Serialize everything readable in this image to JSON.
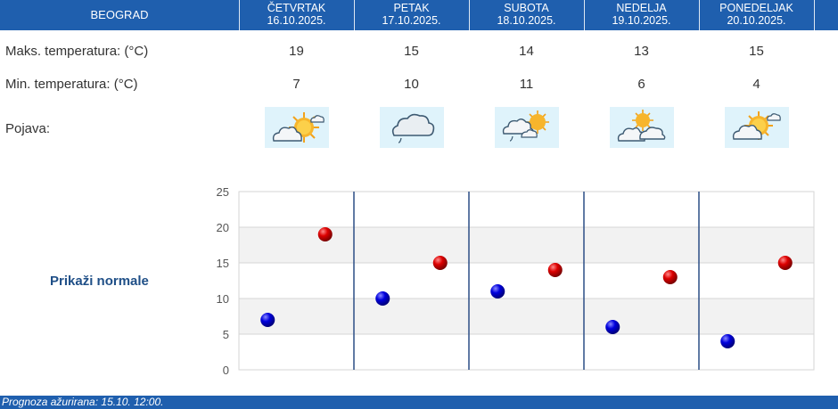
{
  "header": {
    "city": "BEOGRAD",
    "days": [
      {
        "name": "ČETVRTAK",
        "date": "16.10.2025."
      },
      {
        "name": "PETAK",
        "date": "17.10.2025."
      },
      {
        "name": "SUBOTA",
        "date": "18.10.2025."
      },
      {
        "name": "NEDELJA",
        "date": "19.10.2025."
      },
      {
        "name": "PONEDELJAK",
        "date": "20.10.2025."
      }
    ]
  },
  "rows": {
    "max_label": "Maks. temperatura: (°C)",
    "min_label": "Min. temperatura: (°C)",
    "weather_label": "Pojava:",
    "max": [
      "19",
      "15",
      "14",
      "13",
      "15"
    ],
    "min": [
      "7",
      "10",
      "11",
      "6",
      "4"
    ],
    "icons": [
      "sun-behind-cloud-icon",
      "cloud-drizzle-icon",
      "partly-cloudy-drizzle-icon",
      "sun-behind-clouds-icon",
      "sun-behind-cloud-icon"
    ]
  },
  "normals_link": "Prikaži normale",
  "footer": "Prognoza ažurirana:  15.10. 12:00.",
  "colors": {
    "header": "#1f5fae",
    "max_dot": "#cc0000",
    "min_dot": "#0000cc",
    "link": "#1f4f87"
  },
  "chart_data": {
    "type": "scatter",
    "categories": [
      "16.10.2025.",
      "17.10.2025.",
      "18.10.2025.",
      "19.10.2025.",
      "20.10.2025."
    ],
    "series": [
      {
        "values": [
          7,
          10,
          11,
          6,
          4
        ]
      },
      {
        "values": [
          19,
          15,
          14,
          13,
          15
        ]
      }
    ],
    "ylim": [
      0,
      25
    ],
    "yticks": [
      "0",
      "5",
      "10",
      "15",
      "20",
      "25"
    ],
    "grid": true
  }
}
